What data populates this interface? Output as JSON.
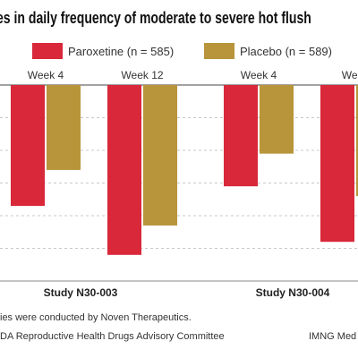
{
  "title": "es in daily frequency of moderate to severe hot flush",
  "legend": [
    {
      "label": "Paroxetine (n = 585)",
      "color": "#d8283a"
    },
    {
      "label": "Placebo (n = 589)",
      "color": "#b8953a"
    }
  ],
  "footnotes": {
    "line1": "ies were conducted by Noven Therapeutics.",
    "line2": "DA Reproductive Health Drugs Advisory Committee",
    "credit": "IMNG Med"
  },
  "chart_data": {
    "type": "bar",
    "title": "es in daily frequency of moderate to severe hot flush",
    "groups": [
      {
        "study": "Study N30-003",
        "weeks": [
          "Week 4",
          "Week 12"
        ]
      },
      {
        "study": "Study N30-004",
        "weeks": [
          "Week 4",
          "Week"
        ]
      }
    ],
    "categories": [
      "Week 4",
      "Week 12",
      "Week 4",
      "Week"
    ],
    "series": [
      {
        "name": "Paroxetine (n = 585)",
        "values": [
          -3.7,
          -5.2,
          -3.1,
          -4.8
        ]
      },
      {
        "name": "Placebo (n = 589)",
        "values": [
          -2.6,
          -4.3,
          -2.1,
          -3.4
        ]
      }
    ],
    "ylim": [
      -6,
      0
    ],
    "colors": [
      "#d8283a",
      "#b8953a"
    ]
  }
}
